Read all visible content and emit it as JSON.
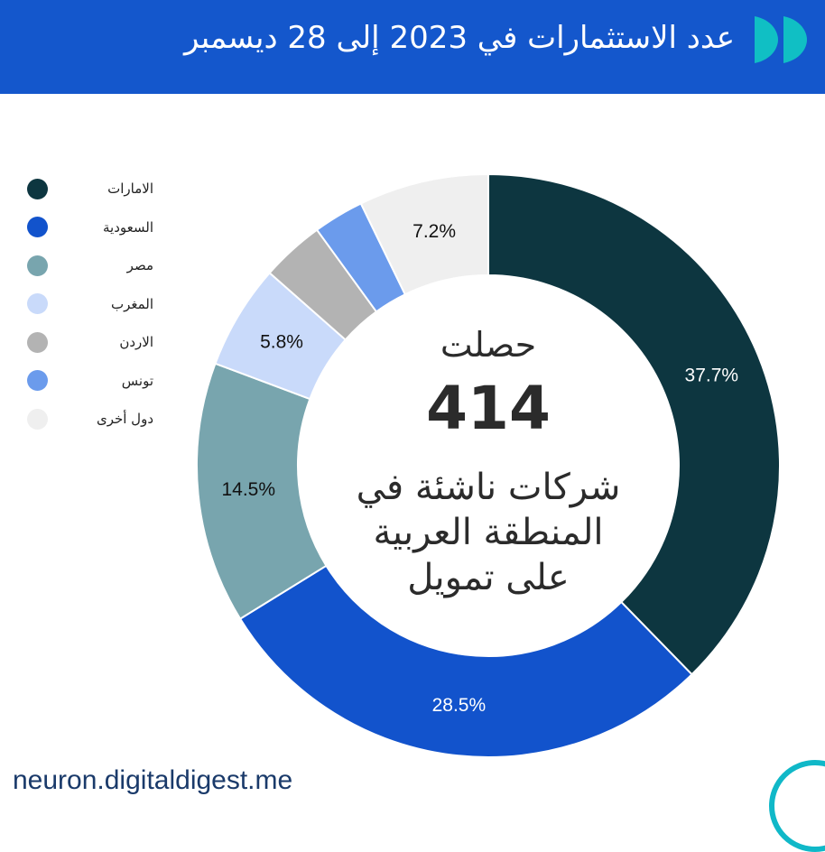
{
  "header": {
    "title": "عدد الاستثمارات في 2023 إلى 28 ديسمبر"
  },
  "center": {
    "line1": "حصلت",
    "number": "414",
    "line2": "شركات ناشئة في",
    "line3": "المنطقة العربية",
    "line4": "على تمويل"
  },
  "footer": {
    "url": "neuron.digitaldigest.me"
  },
  "chart_data": {
    "type": "pie",
    "variant": "donut",
    "title": "عدد الاستثمارات في 2023 إلى 28 ديسمبر",
    "legend_position": "left",
    "slices": [
      {
        "label": "الامارات",
        "value": 37.7,
        "display": "37.7%",
        "color": "#0d3640",
        "label_color": "#ffffff"
      },
      {
        "label": "السعودية",
        "value": 28.5,
        "display": "28.5%",
        "color": "#1253cc",
        "label_color": "#ffffff"
      },
      {
        "label": "مصر",
        "value": 14.5,
        "display": "14.5%",
        "color": "#78a5ae",
        "label_color": "#111111"
      },
      {
        "label": "المغرب",
        "value": 5.8,
        "display": "5.8%",
        "color": "#c9dafa",
        "label_color": "#111111"
      },
      {
        "label": "الاردن",
        "value": 3.5,
        "display": "",
        "color": "#b3b3b3",
        "label_color": "#111111"
      },
      {
        "label": "تونس",
        "value": 2.8,
        "display": "",
        "color": "#6b9bec",
        "label_color": "#111111"
      },
      {
        "label": "دول أخرى",
        "value": 7.2,
        "display": "7.2%",
        "color": "#efefef",
        "label_color": "#111111"
      }
    ]
  }
}
